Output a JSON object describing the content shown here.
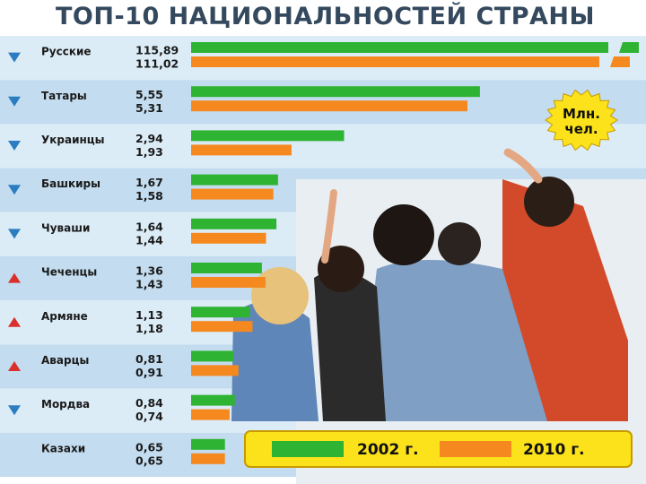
{
  "chart_data": {
    "type": "bar",
    "orientation": "horizontal",
    "title": "ТОП-10 НАЦИОНАЛЬНОСТЕЙ СТРАНЫ",
    "unit_badge": "Млн. чел.",
    "categories": [
      "Русские",
      "Татары",
      "Украинцы",
      "Башкиры",
      "Чуваши",
      "Чеченцы",
      "Армяне",
      "Аварцы",
      "Мордва",
      "Казахи"
    ],
    "trend": [
      "down",
      "down",
      "down",
      "down",
      "down",
      "up",
      "up",
      "up",
      "down",
      "none"
    ],
    "series": [
      {
        "name": "2002 г.",
        "color": "#2fb332",
        "values": [
          115.89,
          5.55,
          2.94,
          1.67,
          1.64,
          1.36,
          1.13,
          0.81,
          0.84,
          0.65
        ]
      },
      {
        "name": "2010 г.",
        "color": "#f5891f",
        "values": [
          111.02,
          5.31,
          1.93,
          1.58,
          1.44,
          1.43,
          1.18,
          0.91,
          0.74,
          0.65
        ]
      }
    ],
    "value_labels": [
      [
        "115,89",
        "111,02"
      ],
      [
        "5,55",
        "5,31"
      ],
      [
        "2,94",
        "1,93"
      ],
      [
        "1,67",
        "1,58"
      ],
      [
        "1,64",
        "1,44"
      ],
      [
        "1,36",
        "1,43"
      ],
      [
        "1,13",
        "1,18"
      ],
      [
        "0,81",
        "0,91"
      ],
      [
        "0,84",
        "0,74"
      ],
      [
        "0,65",
        "0,65"
      ]
    ],
    "first_row_bars_broken": true,
    "legend_position": "bottom-right",
    "grid": false
  },
  "colors": {
    "row_light": "#dcecf7",
    "row_dark": "#c3dcef",
    "arrow_down": "#2b7cc0",
    "arrow_up": "#d9302b",
    "legend_bg": "#fbe21a",
    "legend_border": "#c79a00"
  }
}
